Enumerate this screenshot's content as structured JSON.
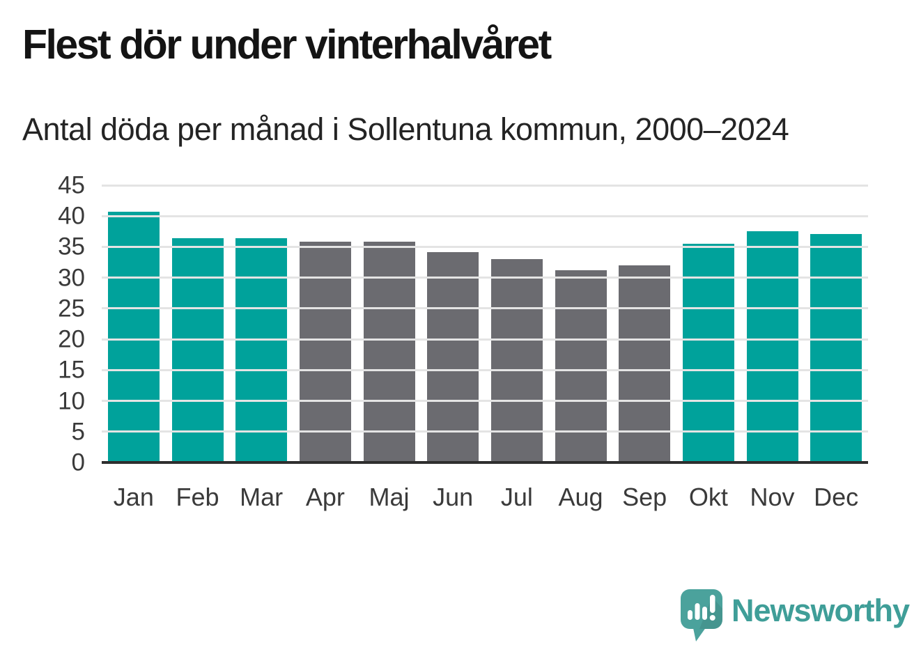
{
  "header": {
    "title": "Flest dör under vinterhalvåret",
    "subtitle": "Antal döda per månad i Sollentuna kommun, 2000–2024"
  },
  "chart_data": {
    "type": "bar",
    "title": "Flest dör under vinterhalvåret",
    "subtitle": "Antal döda per månad i Sollentuna kommun, 2000–2024",
    "categories": [
      "Jan",
      "Feb",
      "Mar",
      "Apr",
      "Maj",
      "Jun",
      "Jul",
      "Aug",
      "Sep",
      "Okt",
      "Nov",
      "Dec"
    ],
    "values": [
      40.7,
      36.4,
      36.4,
      35.9,
      35.9,
      34.1,
      33.0,
      31.2,
      32.0,
      35.5,
      37.5,
      37.1
    ],
    "bar_roles": [
      "winter",
      "winter",
      "winter",
      "summer",
      "summer",
      "summer",
      "summer",
      "summer",
      "summer",
      "winter",
      "winter",
      "winter"
    ],
    "palette": {
      "winter": "#00a29b",
      "summer": "#6b6b70"
    },
    "xlabel": "",
    "ylabel": "",
    "ylim": [
      0,
      45
    ],
    "yticks": [
      0,
      5,
      10,
      15,
      20,
      25,
      30,
      35,
      40,
      45
    ],
    "grid": true,
    "legend": "none",
    "gridline_color": "#e4e4e4",
    "axis_line_color": "#2e2e2e"
  },
  "footer": {
    "brand": "Newsworthy",
    "brand_color": "#3f9e98",
    "logo_icon": "newsworthy-speech-bubble-bar-chart-icon",
    "logo_bubble_color": "#4ba29c"
  }
}
